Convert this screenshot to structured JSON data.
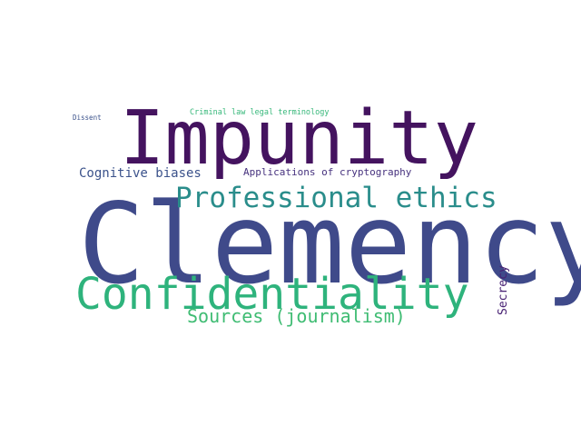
{
  "word_cloud": {
    "words": [
      {
        "key": "impunity",
        "text": "Impunity",
        "color": "#44135f"
      },
      {
        "key": "clemency",
        "text": "Clemency",
        "color": "#3f4a8a"
      },
      {
        "key": "confidentiality",
        "text": "Confidentiality",
        "color": "#2eb37c"
      },
      {
        "key": "professional_ethics",
        "text": "Professional ethics",
        "color": "#2a8d8b"
      },
      {
        "key": "sources_journalism",
        "text": "Sources (journalism)",
        "color": "#3fbc73"
      },
      {
        "key": "cognitive_biases",
        "text": "Cognitive biases",
        "color": "#3b528b"
      },
      {
        "key": "applications_of_cryptography",
        "text": "Applications of cryptography",
        "color": "#46327e"
      },
      {
        "key": "criminal_law_legal_terminology",
        "text": "Criminal law legal terminology",
        "color": "#35b779"
      },
      {
        "key": "dissent",
        "text": "Dissent",
        "color": "#3b528b"
      },
      {
        "key": "secrecy",
        "text": "Secrecy",
        "color": "#482173"
      }
    ]
  }
}
